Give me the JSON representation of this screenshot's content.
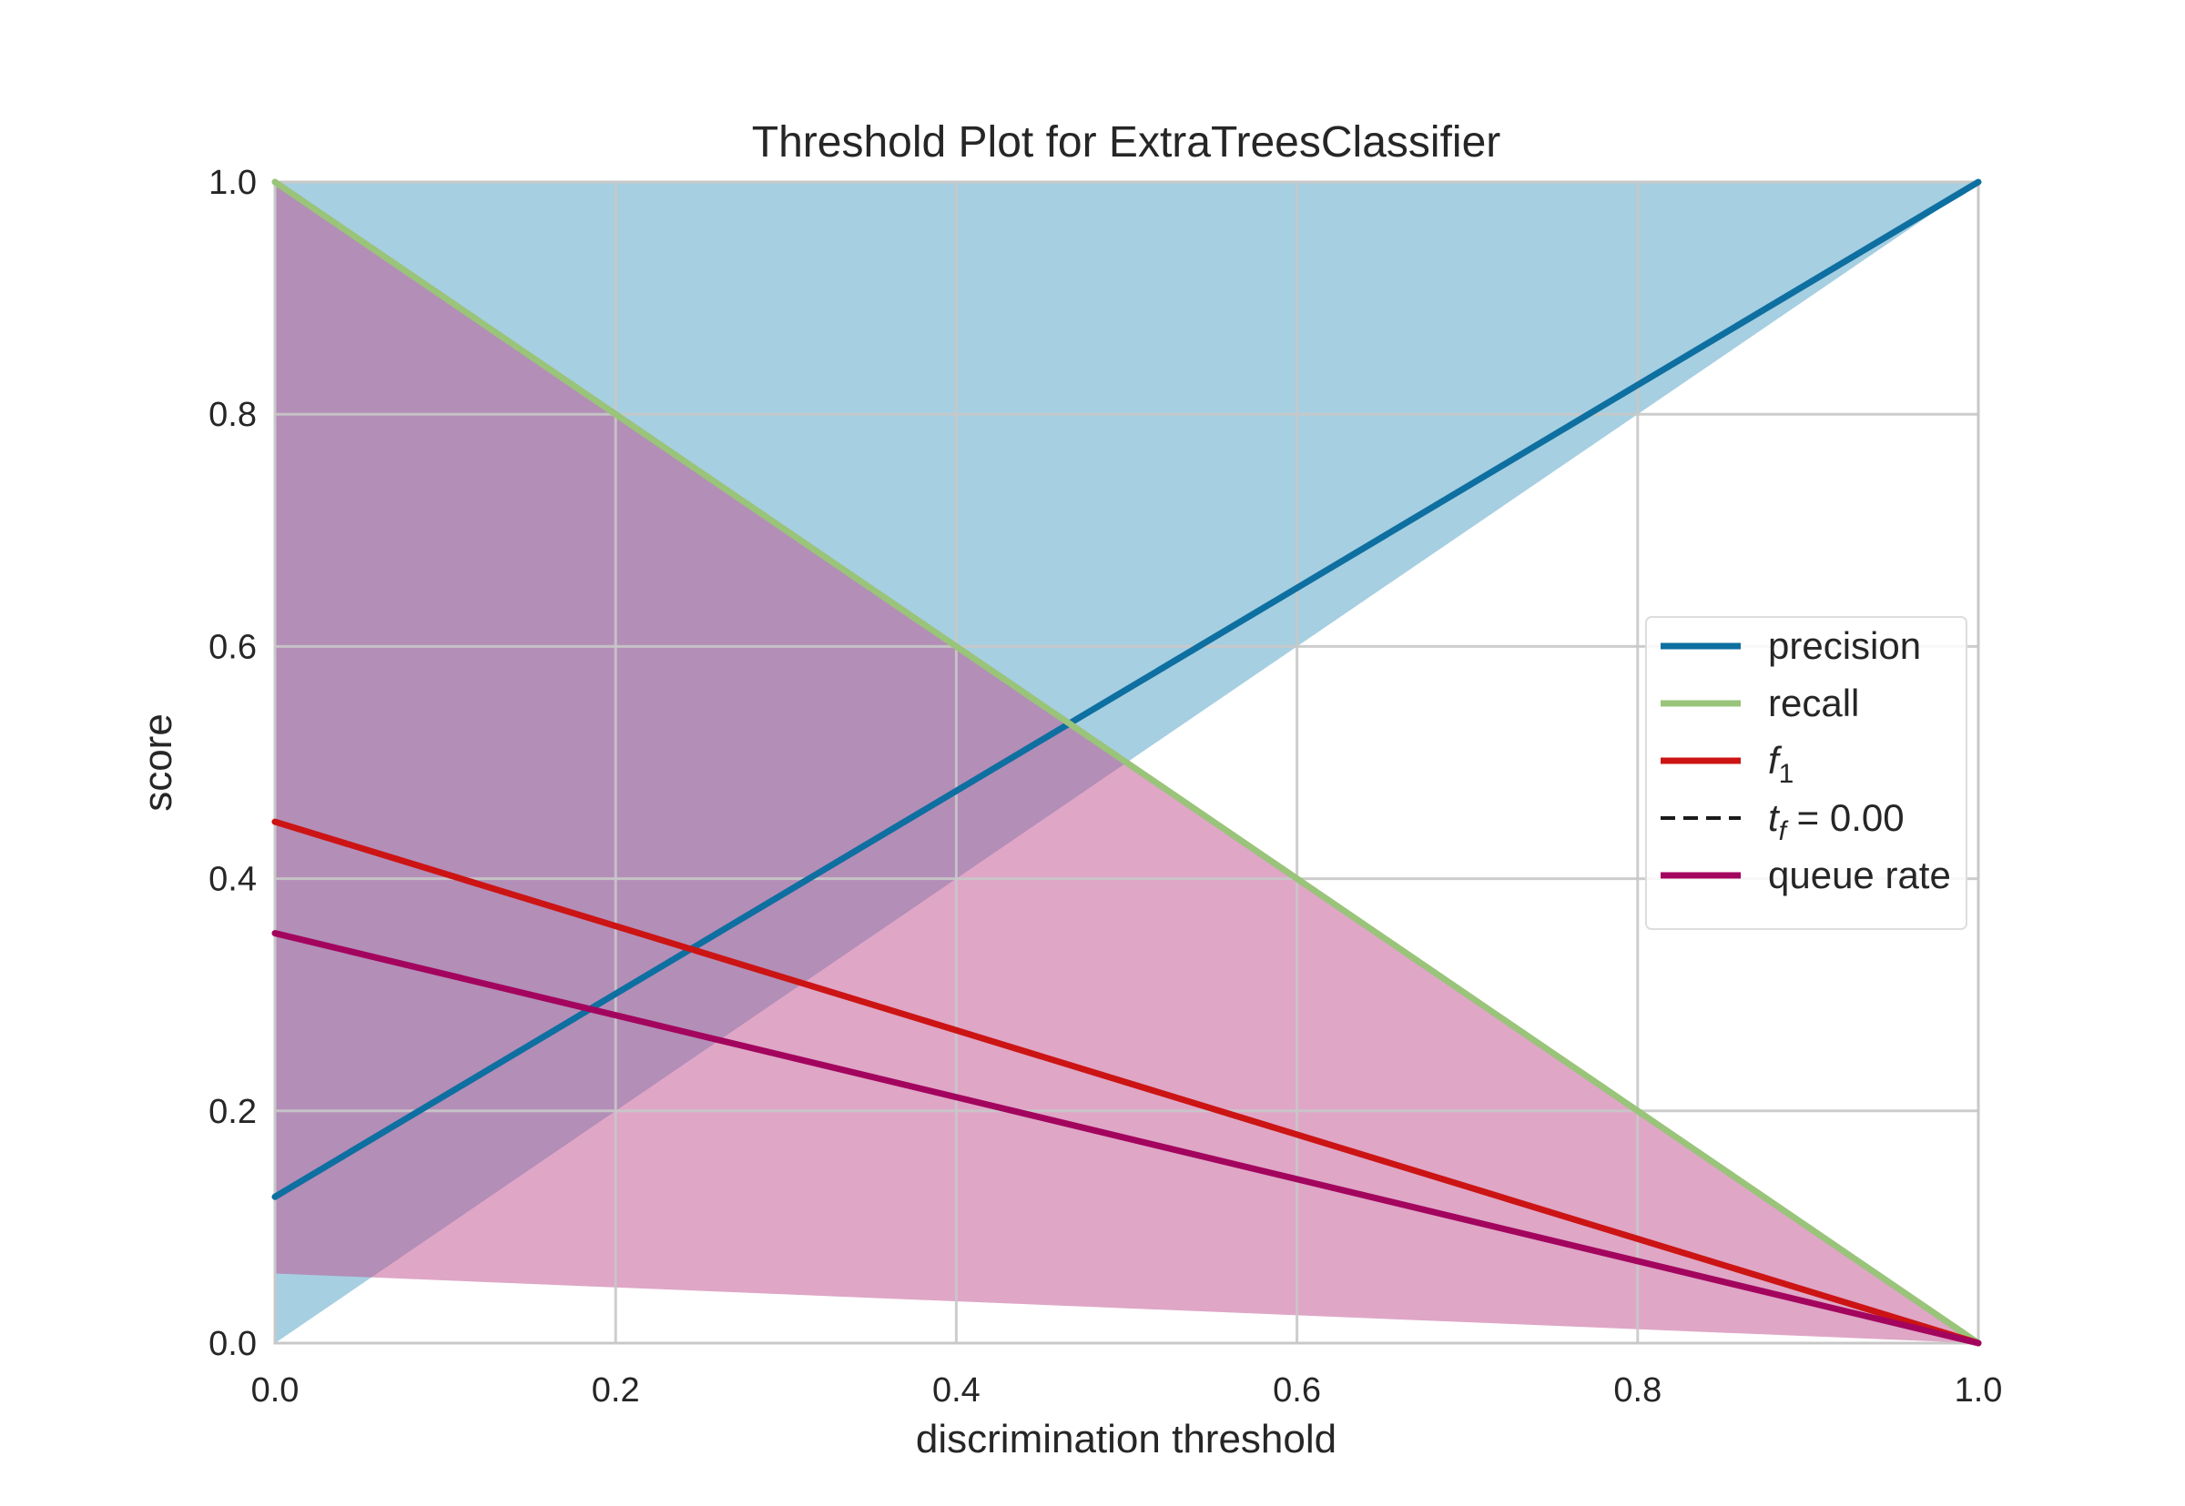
{
  "chart_data": {
    "type": "line",
    "title": "Threshold Plot for ExtraTreesClassifier",
    "xlabel": "discrimination threshold",
    "ylabel": "score",
    "xlim": [
      0.0,
      1.0
    ],
    "ylim": [
      0.0,
      1.0
    ],
    "grid": true,
    "legend_position": "center-right",
    "x_ticks": [
      "0.0",
      "0.2",
      "0.4",
      "0.6",
      "0.8",
      "1.0"
    ],
    "y_ticks": [
      "0.0",
      "0.2",
      "0.4",
      "0.6",
      "0.8",
      "1.0"
    ],
    "x": [
      0.0,
      1.0
    ],
    "series": [
      {
        "name": "precision",
        "color": "#0e6fa1",
        "values": [
          0.126,
          1.0
        ],
        "band": {
          "x": [
            0.0,
            1.0
          ],
          "upper": [
            1.0,
            1.0
          ],
          "lower": [
            0.0,
            1.0
          ],
          "color": "#4e9fc4"
        }
      },
      {
        "name": "recall",
        "color": "#99c47a",
        "values": [
          1.0,
          0.0
        ],
        "band": {
          "x": [
            0.0,
            1.0
          ],
          "upper": [
            1.0,
            0.0
          ],
          "lower": [
            1.0,
            0.0
          ],
          "color": "#99c47a"
        }
      },
      {
        "name": "f1",
        "color": "#cc1414",
        "values": [
          0.449,
          0.0
        ]
      },
      {
        "name": "queue rate",
        "color": "#a3045e",
        "values": [
          0.353,
          0.0
        ],
        "band": {
          "x": [
            0.0,
            0.5,
            1.0
          ],
          "upper": [
            1.0,
            0.5,
            0.0
          ],
          "lower": [
            0.06,
            0.03,
            0.0
          ],
          "color": "#c04d8d"
        }
      }
    ],
    "legend": [
      {
        "label": "precision",
        "color": "#0e6fa1",
        "style": "solid"
      },
      {
        "label": "recall",
        "color": "#99c47a",
        "style": "solid"
      },
      {
        "label": "f",
        "subscript": "1",
        "color": "#cc1414",
        "style": "solid"
      },
      {
        "label": "t",
        "subscript": "f",
        "suffix": " = 0.00",
        "color": "#1a1a1a",
        "style": "dashed"
      },
      {
        "label": "queue rate",
        "color": "#a3045e",
        "style": "solid"
      }
    ]
  }
}
